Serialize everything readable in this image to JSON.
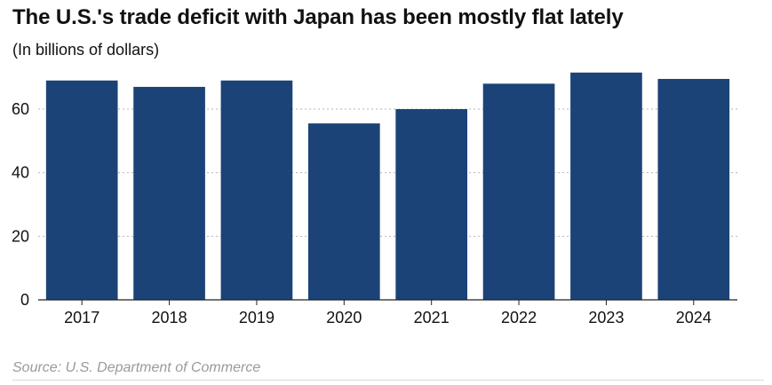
{
  "chart_data": {
    "type": "bar",
    "title": "The U.S.'s trade deficit with Japan has been mostly flat lately",
    "subtitle": "(In billions of dollars)",
    "categories": [
      "2017",
      "2018",
      "2019",
      "2020",
      "2021",
      "2022",
      "2023",
      "2024"
    ],
    "values": [
      69,
      67,
      69,
      55.5,
      60,
      68,
      71.5,
      69.5
    ],
    "ylim": [
      0,
      72
    ],
    "yticks": [
      0,
      20,
      40,
      60
    ],
    "xlabel": "",
    "ylabel": "",
    "grid": "horizontal dotted",
    "bar_color": "#1b4377",
    "source": "Source: U.S. Department of Commerce"
  }
}
